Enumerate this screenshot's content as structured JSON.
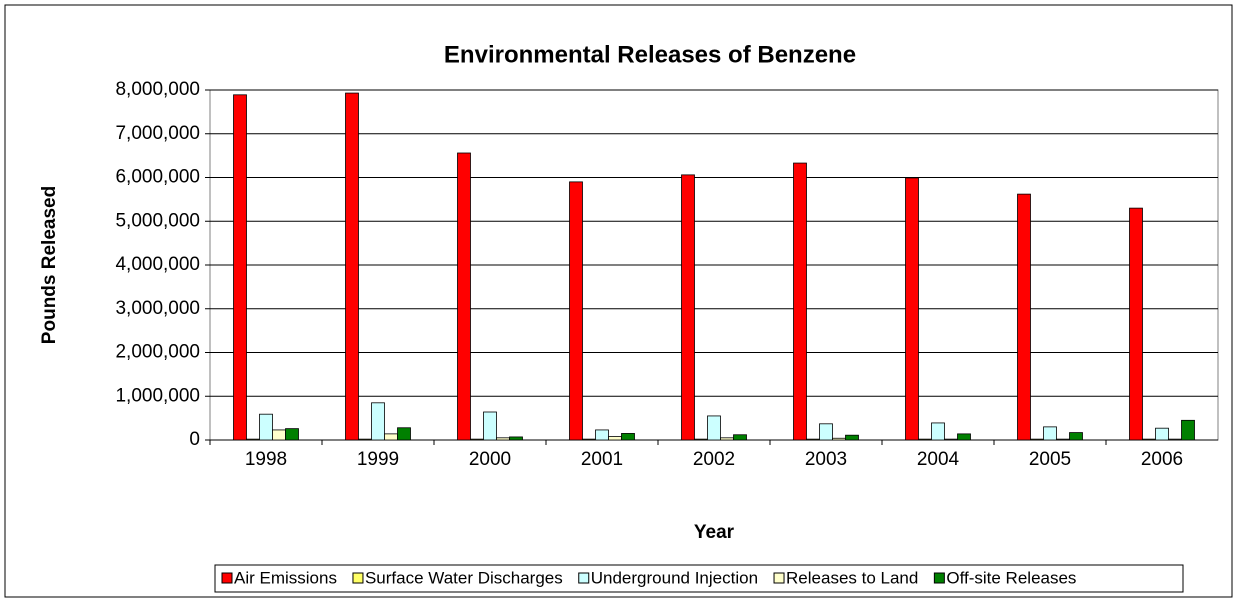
{
  "chart_data": {
    "type": "bar",
    "title": "Environmental Releases of Benzene",
    "x_label": "Year",
    "y_label": "Pounds Released",
    "categories": [
      "1998",
      "1999",
      "2000",
      "2001",
      "2002",
      "2003",
      "2004",
      "2005",
      "2006"
    ],
    "series": [
      {
        "name": "Air Emissions",
        "color": "#ff0000",
        "values": [
          7890000,
          7930000,
          6560000,
          5900000,
          6060000,
          6330000,
          5990000,
          5620000,
          5300000
        ]
      },
      {
        "name": "Surface Water Discharges",
        "color": "#ffff66",
        "values": [
          20000,
          20000,
          20000,
          20000,
          20000,
          20000,
          20000,
          20000,
          20000
        ]
      },
      {
        "name": "Underground Injection",
        "color": "#ccffff",
        "values": [
          590000,
          850000,
          640000,
          230000,
          550000,
          370000,
          390000,
          300000,
          270000
        ]
      },
      {
        "name": "Releases to Land",
        "color": "#ffffcc",
        "values": [
          230000,
          140000,
          50000,
          80000,
          50000,
          40000,
          20000,
          20000,
          20000
        ]
      },
      {
        "name": "Off-site Releases",
        "color": "#008000",
        "values": [
          260000,
          280000,
          70000,
          150000,
          120000,
          110000,
          140000,
          170000,
          450000
        ]
      }
    ],
    "ylim": [
      0,
      8000000
    ],
    "yticks": [
      0,
      {
        "value": 1000000,
        "label": "1,000,000"
      },
      {
        "value": 2000000,
        "label": "2,000,000"
      },
      {
        "value": 3000000,
        "label": "3,000,000"
      },
      {
        "value": 4000000,
        "label": "4,000,000"
      },
      {
        "value": 5000000,
        "label": "5,000,000"
      },
      {
        "value": 6000000,
        "label": "6,000,000"
      },
      {
        "value": 7000000,
        "label": "7,000,000"
      },
      {
        "value": 8000000,
        "label": "8,000,000"
      }
    ],
    "grid": true,
    "legend": "bottom"
  }
}
